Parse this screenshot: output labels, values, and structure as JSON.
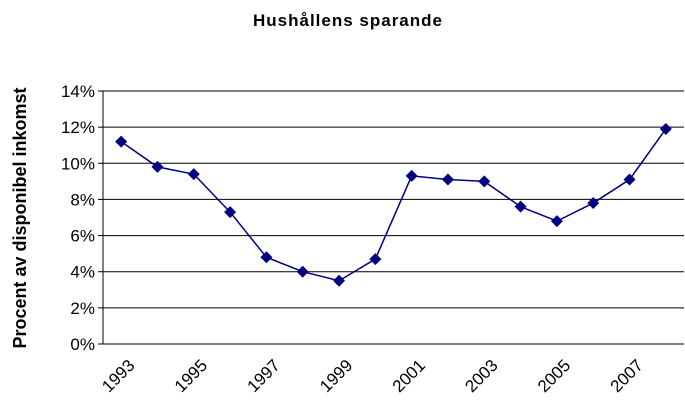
{
  "chart_data": {
    "type": "line",
    "title": "Hushållens sparande",
    "y_label": "Procent av disponibel inkomst",
    "categories": [
      "1993",
      null,
      "1995",
      null,
      "1997",
      null,
      "1999",
      null,
      "2001",
      null,
      "2003",
      null,
      "2005",
      null,
      "2007",
      null
    ],
    "series": [
      {
        "name": "Hushållens sparande",
        "color": "#000080",
        "values": [
          11.2,
          9.8,
          9.4,
          7.3,
          4.8,
          4.0,
          3.5,
          4.7,
          9.3,
          9.1,
          9.0,
          7.6,
          6.8,
          7.8,
          9.1,
          11.9
        ]
      }
    ],
    "ylim": [
      0,
      14
    ],
    "yticks": [
      {
        "value": 0,
        "label": "0%"
      },
      {
        "value": 2,
        "label": "2%"
      },
      {
        "value": 4,
        "label": "4%"
      },
      {
        "value": 6,
        "label": "6%"
      },
      {
        "value": 8,
        "label": "8%"
      },
      {
        "value": 10,
        "label": "10%"
      },
      {
        "value": 12,
        "label": "12%"
      },
      {
        "value": 14,
        "label": "14%"
      }
    ],
    "grid": true
  }
}
